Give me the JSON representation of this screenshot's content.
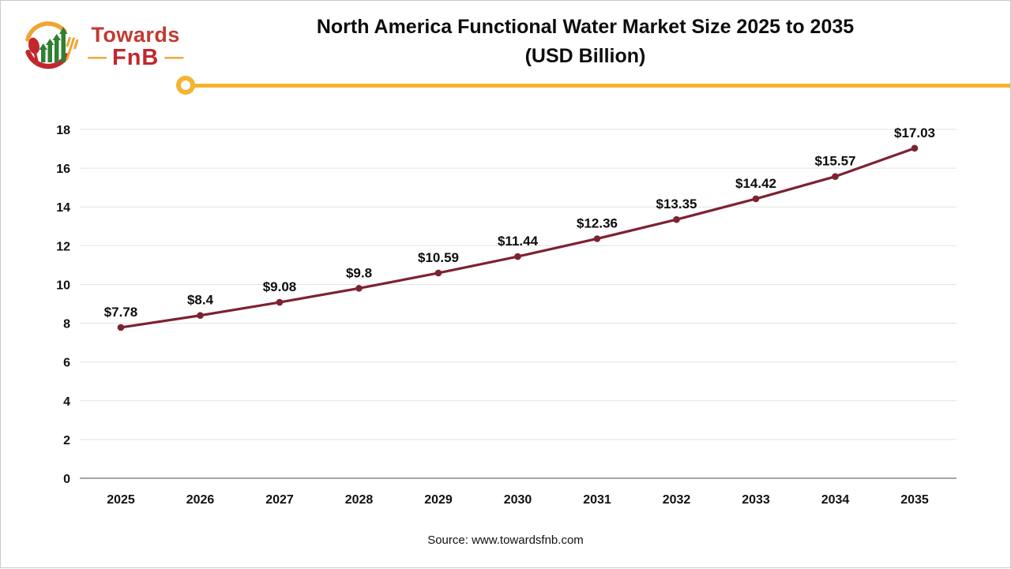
{
  "logo": {
    "brand_line1": "Towards",
    "brand_line2": "FnB",
    "dash_left": "—",
    "dash_right": "—",
    "colors": {
      "red": "#c2272d",
      "text_red": "#c33a31",
      "green": "#2f8032",
      "gold": "#f0a431"
    }
  },
  "header": {
    "title_line1": "North America Functional Water Market Size 2025 to 2035",
    "title_line2": "(USD Billion)"
  },
  "divider": {
    "color": "#f5b32f"
  },
  "source": {
    "label": "Source: www.towardsfnb.com"
  },
  "chart_data": {
    "type": "line",
    "title": "North America Functional Water Market Size 2025 to 2035 (USD Billion)",
    "categories": [
      "2025",
      "2026",
      "2027",
      "2028",
      "2029",
      "2030",
      "2031",
      "2032",
      "2033",
      "2034",
      "2035"
    ],
    "series": [
      {
        "name": "Market Size (USD Billion)",
        "values": [
          7.78,
          8.4,
          9.08,
          9.8,
          10.59,
          11.44,
          12.36,
          13.35,
          14.42,
          15.57,
          17.03
        ]
      }
    ],
    "data_labels": [
      "$7.78",
      "$8.4",
      "$9.08",
      "$9.8",
      "$10.59",
      "$11.44",
      "$12.36",
      "$13.35",
      "$14.42",
      "$15.57",
      "$17.03"
    ],
    "xlabel": "",
    "ylabel": "",
    "ylim": [
      0,
      18
    ],
    "ytick_step": 2,
    "grid": true,
    "legend": false,
    "line_color": "#7d2230",
    "marker": "circle",
    "grid_color": "#e3e3e3",
    "axis_color": "#a6a6a6"
  }
}
